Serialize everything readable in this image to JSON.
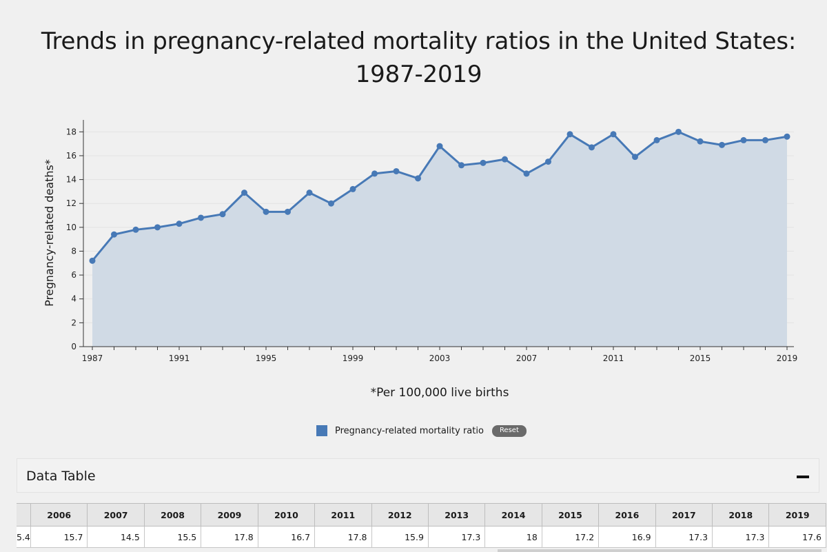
{
  "chart_data": {
    "type": "area",
    "title": "Trends in pregnancy-related mortality ratios in the United States: 1987-2019",
    "xlabel": "",
    "ylabel": "Pregnancy-related deaths*",
    "footnote": "*Per 100,000 live births",
    "xlim": [
      1987,
      2019
    ],
    "ylim": [
      0,
      19
    ],
    "x_ticks": [
      1987,
      1991,
      1995,
      1999,
      2003,
      2007,
      2011,
      2015,
      2019
    ],
    "y_ticks": [
      0,
      2,
      4,
      6,
      8,
      10,
      12,
      14,
      16,
      18
    ],
    "legend": "bottom-center",
    "grid": true,
    "series": [
      {
        "name": "Pregnancy-related mortality ratio",
        "color": "#4779b6",
        "x": [
          1987,
          1988,
          1989,
          1990,
          1991,
          1992,
          1993,
          1994,
          1995,
          1996,
          1997,
          1998,
          1999,
          2000,
          2001,
          2002,
          2003,
          2004,
          2005,
          2006,
          2007,
          2008,
          2009,
          2010,
          2011,
          2012,
          2013,
          2014,
          2015,
          2016,
          2017,
          2018,
          2019
        ],
        "values": [
          7.2,
          9.4,
          9.8,
          10.0,
          10.3,
          10.8,
          11.1,
          12.9,
          11.3,
          11.3,
          12.9,
          12.0,
          13.2,
          14.5,
          14.7,
          14.1,
          16.8,
          15.2,
          15.4,
          15.7,
          14.5,
          15.5,
          17.8,
          16.7,
          17.8,
          15.9,
          17.3,
          18.0,
          17.2,
          16.9,
          17.3,
          17.3,
          17.6
        ]
      }
    ]
  },
  "legend": {
    "reset_label": "Reset"
  },
  "data_table": {
    "heading": "Data Table",
    "columns": [
      "",
      "2006",
      "2007",
      "2008",
      "2009",
      "2010",
      "2011",
      "2012",
      "2013",
      "2014",
      "2015",
      "2016",
      "2017",
      "2018",
      "2019"
    ],
    "row": [
      "5.4",
      "15.7",
      "14.5",
      "15.5",
      "17.8",
      "16.7",
      "17.8",
      "15.9",
      "17.3",
      "18",
      "17.2",
      "16.9",
      "17.3",
      "17.3",
      "17.6"
    ]
  },
  "colors": {
    "line": "#4779b6",
    "area": "#d0dae5",
    "background": "#f0f0f0"
  }
}
